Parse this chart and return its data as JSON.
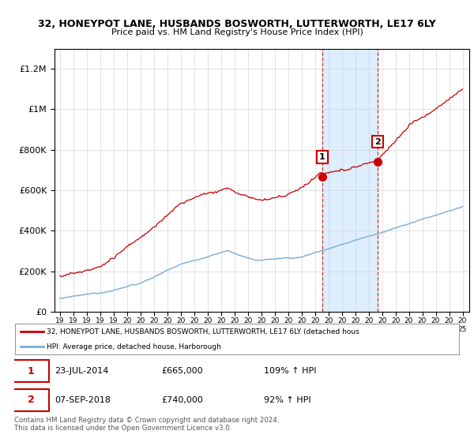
{
  "title": "32, HONEYPOT LANE, HUSBANDS BOSWORTH, LUTTERWORTH, LE17 6LY",
  "subtitle": "Price paid vs. HM Land Registry's House Price Index (HPI)",
  "legend_line1": "32, HONEYPOT LANE, HUSBANDS BOSWORTH, LUTTERWORTH, LE17 6LY (detached hous",
  "legend_line2": "HPI: Average price, detached house, Harborough",
  "sale1_date": "23-JUL-2014",
  "sale1_price": "£665,000",
  "sale1_pct": "109% ↑ HPI",
  "sale2_date": "07-SEP-2018",
  "sale2_price": "£740,000",
  "sale2_pct": "92% ↑ HPI",
  "footer": "Contains HM Land Registry data © Crown copyright and database right 2024.\nThis data is licensed under the Open Government Licence v3.0.",
  "red_color": "#cc0000",
  "blue_color": "#7aadd4",
  "shade_color": "#ddeeff",
  "ylim_max": 1300000,
  "sale1_year": 2014.55,
  "sale2_year": 2018.68,
  "sale1_price_val": 665000,
  "sale2_price_val": 740000
}
